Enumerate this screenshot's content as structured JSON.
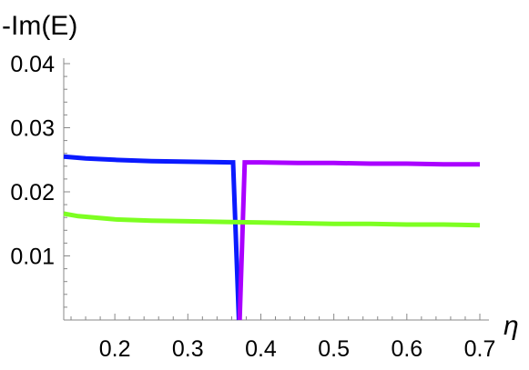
{
  "chart_data": {
    "type": "line",
    "title": "",
    "ylabel": "-Im(E)",
    "xlabel": "η",
    "xlim": [
      0.13,
      0.7
    ],
    "ylim": [
      0.0,
      0.04
    ],
    "x_ticks": [
      0.2,
      0.3,
      0.4,
      0.5,
      0.6,
      0.7
    ],
    "x_tick_labels": [
      "0.2",
      "0.3",
      "0.4",
      "0.5",
      "0.6",
      "0.7"
    ],
    "y_ticks": [
      0.01,
      0.02,
      0.03,
      0.04
    ],
    "y_tick_labels": [
      "0.01",
      "0.02",
      "0.03",
      "0.04"
    ],
    "grid": false,
    "series": [
      {
        "color": "#0a1aff",
        "points": [
          [
            0.13,
            0.0255
          ],
          [
            0.16,
            0.0252
          ],
          [
            0.2,
            0.025
          ],
          [
            0.25,
            0.0248
          ],
          [
            0.3,
            0.0247
          ],
          [
            0.36,
            0.0246
          ],
          [
            0.362,
            0.0246
          ],
          [
            0.37,
            0.0
          ]
        ]
      },
      {
        "color": "#aa00ff",
        "points": [
          [
            0.371,
            0.0
          ],
          [
            0.378,
            0.0246
          ],
          [
            0.4,
            0.0246
          ],
          [
            0.45,
            0.0245
          ],
          [
            0.5,
            0.0245
          ],
          [
            0.55,
            0.0244
          ],
          [
            0.6,
            0.0244
          ],
          [
            0.65,
            0.0243
          ],
          [
            0.7,
            0.0243
          ]
        ]
      },
      {
        "color": "#7dff21",
        "points": [
          [
            0.13,
            0.0166
          ],
          [
            0.15,
            0.0162
          ],
          [
            0.2,
            0.0157
          ],
          [
            0.25,
            0.0155
          ],
          [
            0.3,
            0.0154
          ],
          [
            0.35,
            0.0153
          ],
          [
            0.4,
            0.0152
          ],
          [
            0.45,
            0.0151
          ],
          [
            0.5,
            0.015
          ],
          [
            0.55,
            0.015
          ],
          [
            0.6,
            0.0149
          ],
          [
            0.65,
            0.0149
          ],
          [
            0.7,
            0.0148
          ]
        ]
      }
    ]
  }
}
